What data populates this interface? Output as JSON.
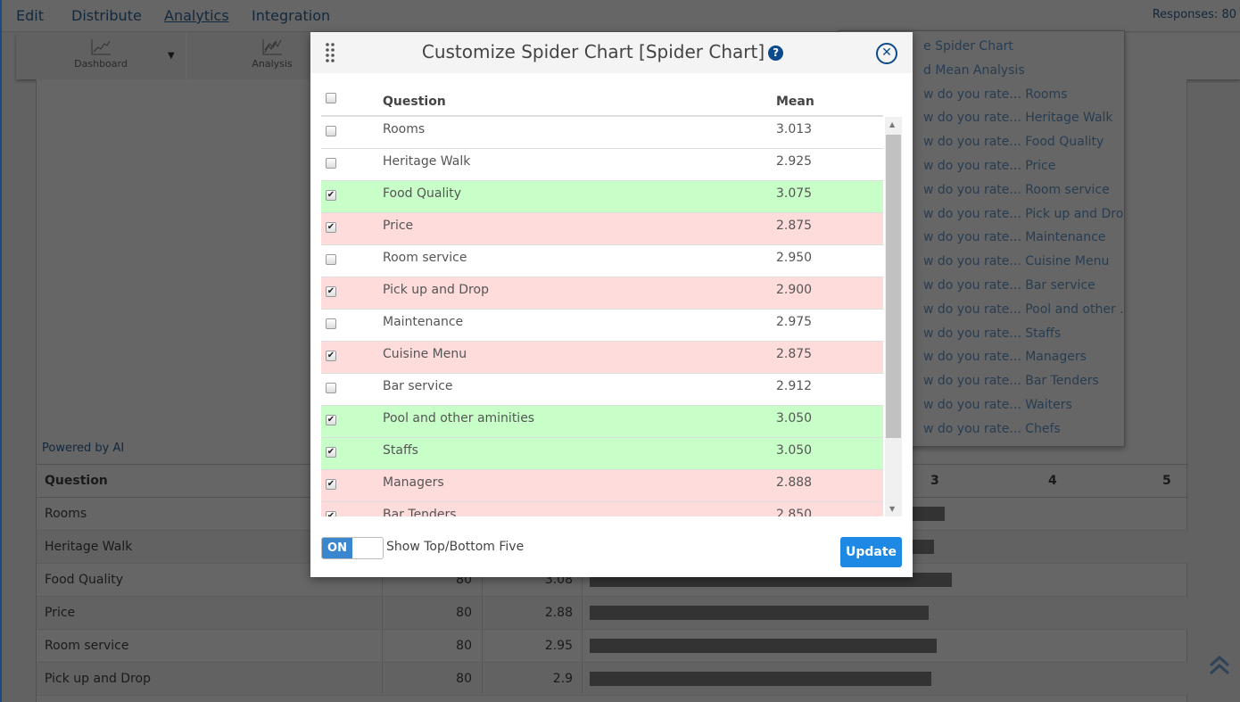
{
  "nav": {
    "items": [
      "Edit",
      "Distribute",
      "Analytics",
      "Integration"
    ],
    "active": "Analytics",
    "responses": "Responses: 80"
  },
  "toolbar": {
    "dashboard": "Dashboard",
    "analysis": "Analysis"
  },
  "powered": "Powered by AI",
  "bg_table": {
    "header": "Question",
    "ticks": [
      "3",
      "4",
      "5"
    ],
    "rows": [
      {
        "q": "Rooms",
        "n": "",
        "mean": "",
        "v": 3.013
      },
      {
        "q": "Heritage Walk",
        "n": "",
        "mean": "",
        "v": 2.925
      },
      {
        "q": "Food Quality",
        "n": "80",
        "mean": "3.08",
        "v": 3.075
      },
      {
        "q": "Price",
        "n": "80",
        "mean": "2.88",
        "v": 2.875
      },
      {
        "q": "Room service",
        "n": "80",
        "mean": "2.95",
        "v": 2.95
      },
      {
        "q": "Pick up and Drop",
        "n": "80",
        "mean": "2.9",
        "v": 2.9
      }
    ],
    "axis_max": 5
  },
  "menu": [
    "e Spider Chart",
    "d Mean Analysis",
    "w do you rate... Rooms",
    "w do you rate... Heritage Walk",
    "w do you rate... Food Quality",
    "w do you rate... Price",
    "w do you rate... Room service",
    "w do you rate... Pick up and Dro...",
    "w do you rate... Maintenance",
    "w do you rate... Cuisine Menu",
    "w do you rate... Bar service",
    "w do you rate... Pool and other ...",
    "w do you rate... Staffs",
    "w do you rate... Managers",
    "w do you rate... Bar Tenders",
    "w do you rate... Waiters",
    "w do you rate... Chefs"
  ],
  "modal": {
    "title": "Customize Spider Chart [Spider Chart]",
    "help": "?",
    "col_question": "Question",
    "col_mean": "Mean",
    "rows": [
      {
        "q": "Rooms",
        "mean": "3.013",
        "checked": false,
        "highlight": "none"
      },
      {
        "q": "Heritage Walk",
        "mean": "2.925",
        "checked": false,
        "highlight": "none"
      },
      {
        "q": "Food Quality",
        "mean": "3.075",
        "checked": true,
        "highlight": "green"
      },
      {
        "q": "Price",
        "mean": "2.875",
        "checked": true,
        "highlight": "red"
      },
      {
        "q": "Room service",
        "mean": "2.950",
        "checked": false,
        "highlight": "none"
      },
      {
        "q": "Pick up and Drop",
        "mean": "2.900",
        "checked": true,
        "highlight": "red"
      },
      {
        "q": "Maintenance",
        "mean": "2.975",
        "checked": false,
        "highlight": "none"
      },
      {
        "q": "Cuisine Menu",
        "mean": "2.875",
        "checked": true,
        "highlight": "red"
      },
      {
        "q": "Bar service",
        "mean": "2.912",
        "checked": false,
        "highlight": "none"
      },
      {
        "q": "Pool and other aminities",
        "mean": "3.050",
        "checked": true,
        "highlight": "green"
      },
      {
        "q": "Staffs",
        "mean": "3.050",
        "checked": true,
        "highlight": "green"
      },
      {
        "q": "Managers",
        "mean": "2.888",
        "checked": true,
        "highlight": "red"
      },
      {
        "q": "Bar Tenders",
        "mean": "2.850",
        "checked": true,
        "highlight": "red"
      }
    ],
    "toggle": "ON",
    "toggle_label": "Show Top/Bottom Five",
    "update": "Update"
  },
  "colors": {
    "green": "#c8ffc8",
    "red": "#ffdcdc",
    "accent": "#1e88e5",
    "nav_text": "#1f3b57"
  }
}
